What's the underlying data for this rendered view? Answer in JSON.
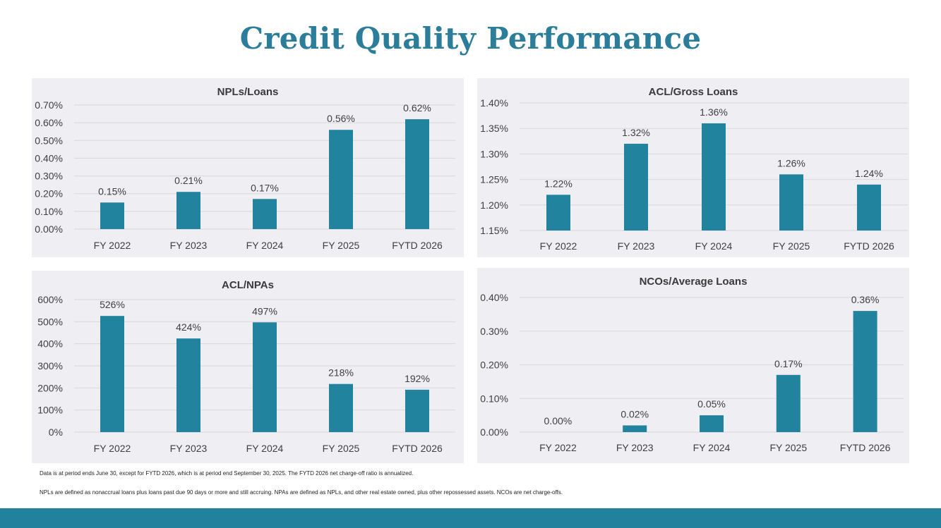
{
  "title": "Credit Quality Performance",
  "colors": {
    "accent": "#2b7d99",
    "bar": "#22839e",
    "panel": "#eeeef3",
    "footer": "#22819d"
  },
  "chart_data": [
    {
      "type": "bar",
      "title": "NPLs/Loans",
      "categories": [
        "FY 2022",
        "FY 2023",
        "FY 2024",
        "FY 2025",
        "FYTD 2026"
      ],
      "values": [
        0.15,
        0.21,
        0.17,
        0.56,
        0.62
      ],
      "data_labels": [
        "0.15%",
        "0.21%",
        "0.17%",
        "0.56%",
        "0.62%"
      ],
      "ylim": [
        0,
        0.7
      ],
      "yticks": [
        0,
        0.1,
        0.2,
        0.3,
        0.4,
        0.5,
        0.6,
        0.7
      ],
      "ytick_labels": [
        "0.00%",
        "0.10%",
        "0.20%",
        "0.30%",
        "0.40%",
        "0.50%",
        "0.60%",
        "0.70%"
      ],
      "grid": true
    },
    {
      "type": "bar",
      "title": "ACL/Gross Loans",
      "categories": [
        "FY 2022",
        "FY 2023",
        "FY 2024",
        "FY 2025",
        "FYTD 2026"
      ],
      "values": [
        1.22,
        1.32,
        1.36,
        1.26,
        1.24
      ],
      "data_labels": [
        "1.22%",
        "1.32%",
        "1.36%",
        "1.26%",
        "1.24%"
      ],
      "ylim": [
        1.15,
        1.4
      ],
      "yticks": [
        1.15,
        1.2,
        1.25,
        1.3,
        1.35,
        1.4
      ],
      "ytick_labels": [
        "1.15%",
        "1.20%",
        "1.25%",
        "1.30%",
        "1.35%",
        "1.40%"
      ],
      "grid": true
    },
    {
      "type": "bar",
      "title": "ACL/NPAs",
      "categories": [
        "FY 2022",
        "FY 2023",
        "FY 2024",
        "FY 2025",
        "FYTD 2026"
      ],
      "values": [
        526,
        424,
        497,
        218,
        192
      ],
      "data_labels": [
        "526%",
        "424%",
        "497%",
        "218%",
        "192%"
      ],
      "ylim": [
        0,
        600
      ],
      "yticks": [
        0,
        100,
        200,
        300,
        400,
        500,
        600
      ],
      "ytick_labels": [
        "0%",
        "100%",
        "200%",
        "300%",
        "400%",
        "500%",
        "600%"
      ],
      "grid": true
    },
    {
      "type": "bar",
      "title": "NCOs/Average Loans",
      "categories": [
        "FY 2022",
        "FY 2023",
        "FY 2024",
        "FY 2025",
        "FYTD 2026"
      ],
      "values": [
        0.0,
        0.02,
        0.05,
        0.17,
        0.36
      ],
      "data_labels": [
        "0.00%",
        "0.02%",
        "0.05%",
        "0.17%",
        "0.36%"
      ],
      "ylim": [
        0,
        0.4
      ],
      "yticks": [
        0,
        0.1,
        0.2,
        0.3,
        0.4
      ],
      "ytick_labels": [
        "0.00%",
        "0.10%",
        "0.20%",
        "0.30%",
        "0.40%"
      ],
      "grid": true
    }
  ],
  "footnotes": [
    "Data is at period ends June 30, except for FYTD 2026, which is at period end September 30, 2025.  The FYTD 2026 net charge-off ratio is annualized.",
    "NPLs are defined as nonaccrual loans plus loans past due 90 days or more and still accruing. NPAs are defined as NPLs, and other real estate owned, plus other repossessed assets. NCOs are net charge-offs."
  ]
}
